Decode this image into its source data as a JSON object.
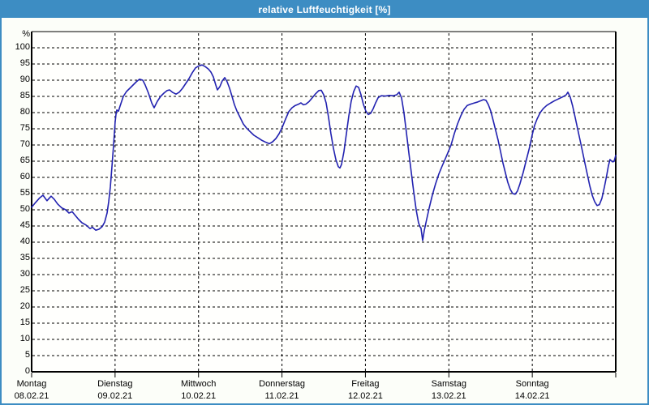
{
  "window": {
    "title": "relative Luftfeuchtigkeit [%]"
  },
  "colors": {
    "titlebar": "#3d8dc3",
    "window_border": "#3d8dc3",
    "content_background": "#fcfef9",
    "plot_background": "#fffffd",
    "grid": "#000000",
    "axis": "#000000",
    "label_text": "#000000",
    "series_line": "#2222b0"
  },
  "chart_data": {
    "type": "line",
    "title": "relative Luftfeuchtigkeit [%]",
    "ylabel": "%",
    "y_unit_label": "%",
    "ylim": [
      0,
      105
    ],
    "xlim_days": [
      0,
      7
    ],
    "grid": "dashed",
    "legend_position": "none",
    "y_ticks": [
      100,
      95,
      90,
      85,
      80,
      75,
      70,
      65,
      60,
      55,
      50,
      45,
      40,
      35,
      30,
      25,
      20,
      15,
      10,
      5,
      0
    ],
    "x_axis_days": [
      {
        "name": "Montag",
        "date": "08.02.21"
      },
      {
        "name": "Dienstag",
        "date": "09.02.21"
      },
      {
        "name": "Mittwoch",
        "date": "10.02.21"
      },
      {
        "name": "Donnerstag",
        "date": "11.02.21"
      },
      {
        "name": "Freitag",
        "date": "12.02.21"
      },
      {
        "name": "Samstag",
        "date": "13.02.21"
      },
      {
        "name": "Sonntag",
        "date": "14.02.21"
      }
    ],
    "series": [
      {
        "name": "relative Luftfeuchtigkeit",
        "unit": "%",
        "points_t_days_value_pct": [
          [
            0.0,
            50.8
          ],
          [
            0.049,
            52.3
          ],
          [
            0.097,
            53.7
          ],
          [
            0.136,
            54.5
          ],
          [
            0.184,
            52.8
          ],
          [
            0.233,
            54.2
          ],
          [
            0.272,
            53.2
          ],
          [
            0.311,
            51.8
          ],
          [
            0.36,
            50.6
          ],
          [
            0.408,
            50.0
          ],
          [
            0.447,
            49.0
          ],
          [
            0.486,
            49.4
          ],
          [
            0.525,
            48.2
          ],
          [
            0.564,
            47.0
          ],
          [
            0.603,
            46.0
          ],
          [
            0.651,
            45.3
          ],
          [
            0.7,
            44.2
          ],
          [
            0.729,
            44.6
          ],
          [
            0.768,
            43.7
          ],
          [
            0.807,
            44.0
          ],
          [
            0.846,
            44.8
          ],
          [
            0.875,
            46.2
          ],
          [
            0.904,
            49.0
          ],
          [
            0.924,
            52.5
          ],
          [
            0.943,
            57.0
          ],
          [
            0.962,
            63.0
          ],
          [
            0.982,
            70.0
          ],
          [
            1.0,
            77.0
          ],
          [
            1.011,
            79.5
          ],
          [
            1.021,
            80.8
          ],
          [
            1.04,
            80.4
          ],
          [
            1.06,
            82.0
          ],
          [
            1.099,
            85.0
          ],
          [
            1.137,
            86.5
          ],
          [
            1.176,
            87.5
          ],
          [
            1.215,
            88.5
          ],
          [
            1.254,
            89.5
          ],
          [
            1.293,
            90.3
          ],
          [
            1.332,
            90.0
          ],
          [
            1.361,
            88.5
          ],
          [
            1.4,
            86.0
          ],
          [
            1.439,
            83.0
          ],
          [
            1.468,
            81.5
          ],
          [
            1.507,
            83.5
          ],
          [
            1.546,
            85.0
          ],
          [
            1.585,
            86.0
          ],
          [
            1.624,
            86.8
          ],
          [
            1.653,
            87.0
          ],
          [
            1.692,
            86.2
          ],
          [
            1.731,
            85.7
          ],
          [
            1.769,
            86.3
          ],
          [
            1.808,
            87.5
          ],
          [
            1.847,
            89.0
          ],
          [
            1.886,
            90.5
          ],
          [
            1.925,
            92.3
          ],
          [
            1.964,
            93.8
          ],
          [
            2.003,
            94.4
          ],
          [
            2.042,
            94.7
          ],
          [
            2.081,
            94.2
          ],
          [
            2.119,
            93.4
          ],
          [
            2.149,
            92.5
          ],
          [
            2.178,
            91.0
          ],
          [
            2.207,
            88.5
          ],
          [
            2.226,
            87.0
          ],
          [
            2.256,
            88.0
          ],
          [
            2.285,
            89.8
          ],
          [
            2.314,
            90.8
          ],
          [
            2.343,
            89.5
          ],
          [
            2.372,
            87.5
          ],
          [
            2.401,
            85.0
          ],
          [
            2.43,
            82.5
          ],
          [
            2.46,
            80.5
          ],
          [
            2.499,
            78.5
          ],
          [
            2.537,
            76.5
          ],
          [
            2.576,
            75.2
          ],
          [
            2.615,
            74.2
          ],
          [
            2.664,
            73.0
          ],
          [
            2.713,
            72.2
          ],
          [
            2.761,
            71.4
          ],
          [
            2.81,
            70.8
          ],
          [
            2.849,
            70.4
          ],
          [
            2.888,
            71.0
          ],
          [
            2.927,
            72.0
          ],
          [
            2.966,
            73.5
          ],
          [
            3.004,
            75.5
          ],
          [
            3.043,
            78.0
          ],
          [
            3.082,
            80.3
          ],
          [
            3.121,
            81.5
          ],
          [
            3.16,
            82.2
          ],
          [
            3.199,
            82.6
          ],
          [
            3.228,
            83.0
          ],
          [
            3.257,
            82.4
          ],
          [
            3.286,
            82.6
          ],
          [
            3.325,
            83.4
          ],
          [
            3.364,
            84.6
          ],
          [
            3.403,
            85.8
          ],
          [
            3.442,
            86.8
          ],
          [
            3.471,
            86.9
          ],
          [
            3.5,
            85.5
          ],
          [
            3.529,
            83.0
          ],
          [
            3.558,
            78.5
          ],
          [
            3.587,
            73.5
          ],
          [
            3.617,
            69.0
          ],
          [
            3.646,
            65.5
          ],
          [
            3.675,
            63.3
          ],
          [
            3.694,
            62.9
          ],
          [
            3.714,
            64.0
          ],
          [
            3.743,
            68.0
          ],
          [
            3.772,
            73.5
          ],
          [
            3.801,
            79.0
          ],
          [
            3.83,
            83.5
          ],
          [
            3.86,
            86.5
          ],
          [
            3.889,
            88.2
          ],
          [
            3.918,
            87.8
          ],
          [
            3.947,
            85.5
          ],
          [
            3.976,
            82.5
          ],
          [
            4.005,
            80.5
          ],
          [
            4.035,
            79.4
          ],
          [
            4.064,
            79.8
          ],
          [
            4.093,
            81.2
          ],
          [
            4.122,
            83.0
          ],
          [
            4.152,
            84.6
          ],
          [
            4.19,
            85.2
          ],
          [
            4.239,
            85.1
          ],
          [
            4.287,
            85.3
          ],
          [
            4.336,
            85.2
          ],
          [
            4.375,
            85.5
          ],
          [
            4.404,
            86.3
          ],
          [
            4.433,
            84.5
          ],
          [
            4.462,
            80.0
          ],
          [
            4.491,
            74.0
          ],
          [
            4.521,
            67.5
          ],
          [
            4.55,
            61.5
          ],
          [
            4.579,
            55.5
          ],
          [
            4.608,
            50.0
          ],
          [
            4.637,
            46.0
          ],
          [
            4.657,
            44.6
          ],
          [
            4.666,
            44.4
          ],
          [
            4.686,
            40.5
          ],
          [
            4.705,
            43.5
          ],
          [
            4.734,
            47.0
          ],
          [
            4.764,
            50.5
          ],
          [
            4.802,
            54.5
          ],
          [
            4.841,
            58.0
          ],
          [
            4.88,
            61.0
          ],
          [
            4.919,
            63.5
          ],
          [
            4.958,
            65.8
          ],
          [
            4.987,
            67.5
          ],
          [
            5.026,
            70.0
          ],
          [
            5.065,
            73.5
          ],
          [
            5.104,
            76.5
          ],
          [
            5.143,
            79.0
          ],
          [
            5.182,
            81.0
          ],
          [
            5.22,
            82.2
          ],
          [
            5.259,
            82.6
          ],
          [
            5.298,
            82.9
          ],
          [
            5.337,
            83.2
          ],
          [
            5.376,
            83.6
          ],
          [
            5.415,
            84.0
          ],
          [
            5.444,
            83.8
          ],
          [
            5.473,
            82.5
          ],
          [
            5.502,
            80.5
          ],
          [
            5.532,
            77.5
          ],
          [
            5.561,
            74.5
          ],
          [
            5.59,
            71.5
          ],
          [
            5.619,
            68.0
          ],
          [
            5.648,
            64.5
          ],
          [
            5.677,
            61.5
          ],
          [
            5.706,
            58.5
          ],
          [
            5.736,
            56.3
          ],
          [
            5.765,
            55.0
          ],
          [
            5.794,
            54.8
          ],
          [
            5.823,
            55.8
          ],
          [
            5.852,
            58.0
          ],
          [
            5.891,
            61.5
          ],
          [
            5.93,
            65.5
          ],
          [
            5.969,
            69.5
          ],
          [
            5.998,
            73.0
          ],
          [
            6.027,
            76.0
          ],
          [
            6.057,
            78.0
          ],
          [
            6.095,
            80.0
          ],
          [
            6.134,
            81.3
          ],
          [
            6.173,
            82.2
          ],
          [
            6.222,
            83.0
          ],
          [
            6.27,
            83.7
          ],
          [
            6.319,
            84.3
          ],
          [
            6.368,
            84.9
          ],
          [
            6.407,
            85.5
          ],
          [
            6.426,
            86.3
          ],
          [
            6.455,
            84.8
          ],
          [
            6.484,
            82.0
          ],
          [
            6.514,
            78.5
          ],
          [
            6.543,
            75.0
          ],
          [
            6.572,
            71.5
          ],
          [
            6.601,
            68.0
          ],
          [
            6.63,
            64.5
          ],
          [
            6.659,
            61.0
          ],
          [
            6.688,
            57.5
          ],
          [
            6.718,
            54.5
          ],
          [
            6.747,
            52.5
          ],
          [
            6.776,
            51.3
          ],
          [
            6.805,
            51.6
          ],
          [
            6.834,
            53.5
          ],
          [
            6.864,
            57.0
          ],
          [
            6.893,
            60.8
          ],
          [
            6.912,
            63.5
          ],
          [
            6.931,
            65.5
          ],
          [
            6.961,
            64.8
          ],
          [
            6.98,
            64.9
          ],
          [
            7.0,
            66.8
          ]
        ]
      }
    ]
  }
}
